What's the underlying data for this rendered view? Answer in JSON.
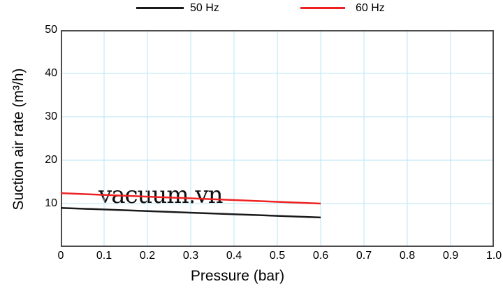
{
  "legend": {
    "items": [
      {
        "label": "50 Hz",
        "color": "#1a1a1a"
      },
      {
        "label": "60 Hz",
        "color": "#ee2222"
      }
    ]
  },
  "watermark": {
    "text": "vacuum.vn"
  },
  "chart_data": {
    "type": "line",
    "title": "",
    "xlabel": "Pressure (bar)",
    "ylabel": "Suction air rate (m³/h)",
    "xlim": [
      0,
      1.0
    ],
    "ylim": [
      0,
      50
    ],
    "grid": true,
    "grid_color": "#b9e6f7",
    "border_color": "#4d4d4d",
    "legend_position": "top",
    "x_ticks": [
      {
        "label": "0",
        "value": 0
      },
      {
        "label": "0.1",
        "value": 0.1
      },
      {
        "label": "0.2",
        "value": 0.2
      },
      {
        "label": "0.3",
        "value": 0.3
      },
      {
        "label": "0.4",
        "value": 0.4
      },
      {
        "label": "0.5",
        "value": 0.5
      },
      {
        "label": "0.6",
        "value": 0.6
      },
      {
        "label": "0.7",
        "value": 0.7
      },
      {
        "label": "0.8",
        "value": 0.8
      },
      {
        "label": "0.9",
        "value": 0.9
      },
      {
        "label": "1.0",
        "value": 1.0
      }
    ],
    "y_ticks": [
      {
        "label": "10",
        "value": 10
      },
      {
        "label": "20",
        "value": 20
      },
      {
        "label": "30",
        "value": 30
      },
      {
        "label": "40",
        "value": 40
      },
      {
        "label": "50",
        "value": 50
      }
    ],
    "x_gridlines": [
      0.1,
      0.2,
      0.3,
      0.4,
      0.5,
      0.6,
      0.7,
      0.8,
      0.9
    ],
    "y_gridlines": [
      10,
      20,
      30,
      40
    ],
    "series": [
      {
        "name": "50 Hz",
        "color": "#1a1a1a",
        "x": [
          0,
          0.6
        ],
        "y": [
          9.0,
          6.8
        ]
      },
      {
        "name": "60 Hz",
        "color": "#ee2222",
        "x": [
          0,
          0.6
        ],
        "y": [
          12.4,
          10.0
        ]
      }
    ]
  }
}
